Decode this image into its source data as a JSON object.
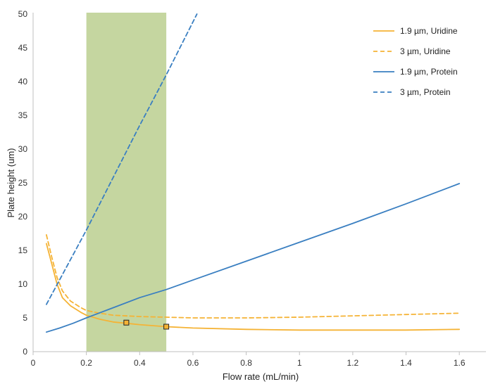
{
  "chart_data": {
    "type": "line",
    "xlabel": "Flow rate (mL/min)",
    "ylabel": "Plate height (um)",
    "xlim": [
      0,
      1.7
    ],
    "ylim": [
      0,
      50
    ],
    "x_ticks": [
      0,
      0.2,
      0.4,
      0.6,
      0.8,
      1,
      1.2,
      1.4,
      1.6
    ],
    "x_tick_labels": [
      "0",
      "0.2",
      "0.4",
      "0.6",
      "0.8",
      "1",
      "1.2",
      "1.4",
      "1.6"
    ],
    "y_ticks": [
      0,
      5,
      10,
      15,
      20,
      25,
      30,
      35,
      40,
      45,
      50
    ],
    "y_tick_labels": [
      "0",
      "5",
      "10",
      "15",
      "20",
      "25",
      "30",
      "35",
      "40",
      "45",
      "50"
    ],
    "grid": false,
    "legend_position": "top-right",
    "shaded_region": {
      "x_start": 0.2,
      "x_end": 0.5,
      "color": "#c5d6a0"
    },
    "series": [
      {
        "name": "1.9 µm, Uridine",
        "color": "#f5b335",
        "style": "solid",
        "x": [
          0.05,
          0.07,
          0.09,
          0.11,
          0.14,
          0.18,
          0.2,
          0.25,
          0.3,
          0.35,
          0.4,
          0.5,
          0.6,
          0.8,
          1.0,
          1.2,
          1.4,
          1.6
        ],
        "y": [
          16.0,
          13.0,
          10.0,
          8.0,
          6.8,
          5.8,
          5.4,
          4.8,
          4.4,
          4.2,
          4.0,
          3.7,
          3.5,
          3.3,
          3.2,
          3.2,
          3.2,
          3.3
        ]
      },
      {
        "name": "3 µm, Uridine",
        "color": "#f5b335",
        "style": "dashed",
        "x": [
          0.05,
          0.07,
          0.09,
          0.11,
          0.14,
          0.18,
          0.2,
          0.25,
          0.3,
          0.4,
          0.5,
          0.6,
          0.8,
          1.0,
          1.2,
          1.4,
          1.6
        ],
        "y": [
          17.3,
          14.0,
          11.0,
          9.0,
          7.5,
          6.5,
          6.1,
          5.7,
          5.4,
          5.2,
          5.1,
          5.0,
          5.0,
          5.1,
          5.3,
          5.5,
          5.7
        ]
      },
      {
        "name": "1.9 µm, Protein",
        "color": "#3a7fc1",
        "style": "solid",
        "x": [
          0.05,
          0.1,
          0.15,
          0.2,
          0.3,
          0.4,
          0.5,
          0.6,
          0.8,
          1.0,
          1.2,
          1.4,
          1.6
        ],
        "y": [
          2.9,
          3.5,
          4.2,
          5.0,
          6.5,
          8.0,
          9.2,
          10.6,
          13.4,
          16.2,
          19.0,
          21.9,
          24.9
        ]
      },
      {
        "name": "3 µm, Protein",
        "color": "#3a7fc1",
        "style": "dashed",
        "x": [
          0.05,
          0.2,
          0.4,
          0.5,
          0.615
        ],
        "y": [
          7.0,
          18.0,
          33.5,
          41.0,
          50.0
        ]
      }
    ],
    "markers": [
      {
        "x": 0.35,
        "y": 4.3,
        "color": "#f5b335"
      },
      {
        "x": 0.5,
        "y": 3.7,
        "color": "#f5b335"
      }
    ]
  }
}
